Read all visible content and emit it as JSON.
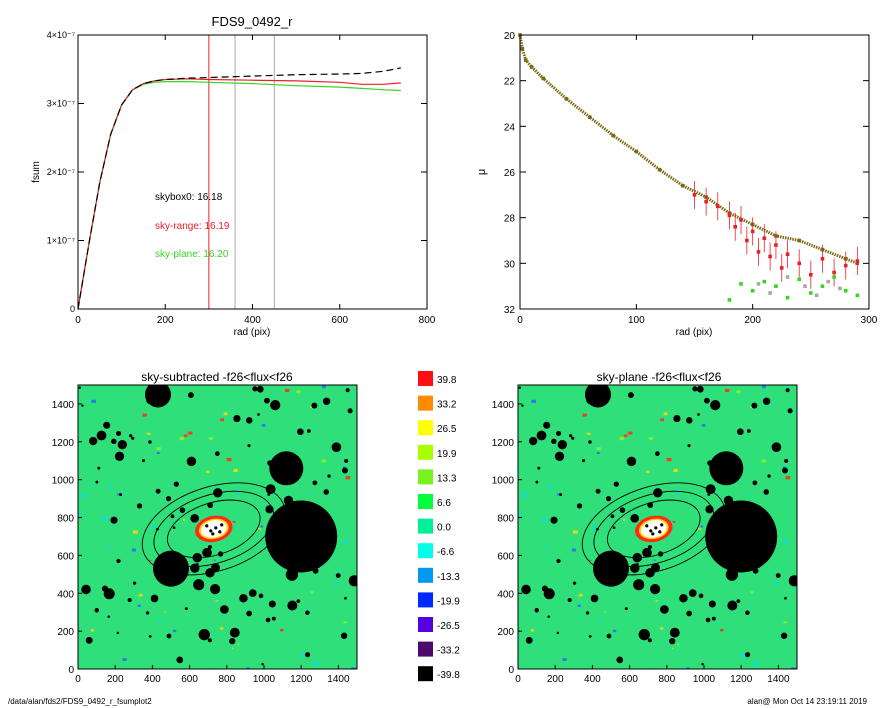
{
  "footer": {
    "path": "/data/alan/fds2/FDS9_0492_r_fsumplot2",
    "stamp": "alan@  Mon Oct 14 23:19:11 2019"
  },
  "colors": {
    "black": "#000000",
    "red": "#e8202a",
    "green": "#39d422",
    "gray": "#a8a8a8",
    "olive": "#7a6a12",
    "map_green": "#2fe07a"
  },
  "chart_data": [
    {
      "id": "fsum-profile",
      "type": "line",
      "title": "FDS9_0492_r",
      "xlabel": "rad (pix)",
      "ylabel": "fsum",
      "xlim": [
        0,
        800
      ],
      "ylim": [
        0,
        4e-07
      ],
      "xticks": [
        {
          "v": 0,
          "label": "0"
        },
        {
          "v": 200,
          "label": "200"
        },
        {
          "v": 400,
          "label": "400"
        },
        {
          "v": 600,
          "label": "600"
        },
        {
          "v": 800,
          "label": "800"
        }
      ],
      "yticks": [
        {
          "v": 0,
          "label": "0"
        },
        {
          "v": 1e-07,
          "label": "1×10⁻⁷"
        },
        {
          "v": 2e-07,
          "label": "2×10⁻⁷"
        },
        {
          "v": 3e-07,
          "label": "3×10⁻⁷"
        },
        {
          "v": 4e-07,
          "label": "4×10⁻⁷"
        }
      ],
      "vlines": [
        {
          "x": 300,
          "color": "red"
        },
        {
          "x": 360,
          "color": "gray"
        },
        {
          "x": 450,
          "color": "gray"
        }
      ],
      "annotations": [
        {
          "text": "skybox0: 16.18",
          "color": "black"
        },
        {
          "text": "sky-range: 16.19",
          "color": "red"
        },
        {
          "text": "sky-plane: 16.20",
          "color": "green"
        }
      ],
      "series": [
        {
          "style": "dashed",
          "color": "black",
          "x": [
            0,
            25,
            50,
            75,
            100,
            125,
            150,
            175,
            200,
            250,
            300,
            400,
            500,
            600,
            650,
            700,
            740
          ],
          "y": [
            0,
            9.5e-08,
            1.85e-07,
            2.55e-07,
            2.98e-07,
            3.2e-07,
            3.29e-07,
            3.33e-07,
            3.35e-07,
            3.37e-07,
            3.38e-07,
            3.4e-07,
            3.42e-07,
            3.43e-07,
            3.44e-07,
            3.47e-07,
            3.52e-07
          ]
        },
        {
          "style": "solid",
          "color": "red",
          "x": [
            0,
            25,
            50,
            75,
            100,
            125,
            150,
            175,
            200,
            250,
            300,
            400,
            500,
            600,
            650,
            700,
            740
          ],
          "y": [
            0,
            9.5e-08,
            1.85e-07,
            2.55e-07,
            2.98e-07,
            3.2e-07,
            3.29e-07,
            3.33e-07,
            3.35e-07,
            3.36e-07,
            3.35e-07,
            3.34e-07,
            3.33e-07,
            3.31e-07,
            3.28e-07,
            3.28e-07,
            3.3e-07
          ]
        },
        {
          "style": "solid",
          "color": "green",
          "x": [
            0,
            25,
            50,
            75,
            100,
            125,
            150,
            175,
            200,
            250,
            300,
            400,
            500,
            600,
            650,
            700,
            740
          ],
          "y": [
            0,
            9.5e-08,
            1.85e-07,
            2.55e-07,
            2.98e-07,
            3.2e-07,
            3.28e-07,
            3.31e-07,
            3.32e-07,
            3.32e-07,
            3.31e-07,
            3.29e-07,
            3.26e-07,
            3.24e-07,
            3.22e-07,
            3.2e-07,
            3.19e-07
          ]
        }
      ]
    },
    {
      "id": "surface-brightness",
      "type": "scatter",
      "xlabel": "rad (pix)",
      "ylabel": "μ",
      "xlim": [
        0,
        300
      ],
      "ylim": [
        32,
        20
      ],
      "xticks": [
        {
          "v": 0,
          "label": "0"
        },
        {
          "v": 100,
          "label": "100"
        },
        {
          "v": 200,
          "label": "200"
        },
        {
          "v": 300,
          "label": "300"
        }
      ],
      "yticks": [
        {
          "v": 20,
          "label": "20"
        },
        {
          "v": 22,
          "label": "22"
        },
        {
          "v": 24,
          "label": "24"
        },
        {
          "v": 26,
          "label": "26"
        },
        {
          "v": 28,
          "label": "28"
        },
        {
          "v": 30,
          "label": "30"
        },
        {
          "v": 32,
          "label": "32"
        }
      ],
      "series": [
        {
          "color": "olive",
          "x": [
            0,
            2,
            5,
            10,
            20,
            40,
            60,
            80,
            100,
            120,
            140,
            160,
            180,
            200,
            220,
            240,
            260,
            280,
            290
          ],
          "y": [
            20.0,
            20.6,
            21.1,
            21.4,
            21.9,
            22.8,
            23.6,
            24.4,
            25.1,
            25.9,
            26.6,
            27.1,
            27.8,
            28.3,
            28.8,
            29.0,
            29.4,
            29.8,
            30.0
          ]
        },
        {
          "color": "red",
          "x": [
            150,
            160,
            170,
            180,
            185,
            190,
            195,
            200,
            205,
            210,
            215,
            220,
            225,
            230,
            240,
            250,
            260,
            270,
            280,
            290
          ],
          "y": [
            27.0,
            27.3,
            27.5,
            27.9,
            28.4,
            28.1,
            29.0,
            28.6,
            29.5,
            28.9,
            29.7,
            29.2,
            30.2,
            29.6,
            30.0,
            30.5,
            29.8,
            30.4,
            30.1,
            29.9
          ]
        },
        {
          "color": "green",
          "x": [
            180,
            190,
            200,
            210,
            220,
            230,
            240,
            250,
            260,
            270,
            280,
            290
          ],
          "y": [
            31.6,
            30.9,
            31.2,
            30.8,
            31.0,
            31.5,
            30.7,
            31.3,
            31.0,
            30.6,
            31.2,
            31.4
          ]
        },
        {
          "color": "gray",
          "x": [
            205,
            215,
            230,
            245,
            255,
            265,
            275
          ],
          "y": [
            30.9,
            31.3,
            30.6,
            31.0,
            31.4,
            30.8,
            31.1
          ]
        }
      ]
    },
    {
      "id": "sky-subtracted-map",
      "type": "heatmap",
      "title": "sky-subtracted -f26<flux<f26",
      "xlim": [
        0,
        1500
      ],
      "ylim": [
        0,
        1500
      ],
      "xticks": [
        "0",
        "200",
        "400",
        "600",
        "800",
        "1000",
        "1200",
        "1400"
      ],
      "yticks": [
        "0",
        "200",
        "400",
        "600",
        "800",
        "1000",
        "1200",
        "1400"
      ]
    },
    {
      "id": "sky-plane-map",
      "type": "heatmap",
      "title": "sky-plane -f26<flux<f26",
      "xlim": [
        0,
        1500
      ],
      "ylim": [
        0,
        1500
      ],
      "xticks": [
        "0",
        "200",
        "400",
        "600",
        "800",
        "1000",
        "1200",
        "1400"
      ],
      "yticks": [
        "0",
        "200",
        "400",
        "600",
        "800",
        "1000",
        "1200",
        "1400"
      ]
    },
    {
      "id": "colorbar",
      "type": "table",
      "levels": [
        {
          "label": "39.8",
          "color": "#ff1010"
        },
        {
          "label": "33.2",
          "color": "#ff8a00"
        },
        {
          "label": "26.5",
          "color": "#ffff00"
        },
        {
          "label": "19.9",
          "color": "#a8ff00"
        },
        {
          "label": "13.3",
          "color": "#78f21e"
        },
        {
          "label": "6.6",
          "color": "#00ff3c"
        },
        {
          "label": "0.0",
          "color": "#00f09a"
        },
        {
          "label": "-6.6",
          "color": "#00ffe6"
        },
        {
          "label": "-13.3",
          "color": "#0099f0"
        },
        {
          "label": "-19.9",
          "color": "#0028ff"
        },
        {
          "label": "-26.5",
          "color": "#5500e0"
        },
        {
          "label": "-33.2",
          "color": "#4a0a6e"
        },
        {
          "label": "-39.8",
          "color": "#000000"
        }
      ]
    }
  ]
}
